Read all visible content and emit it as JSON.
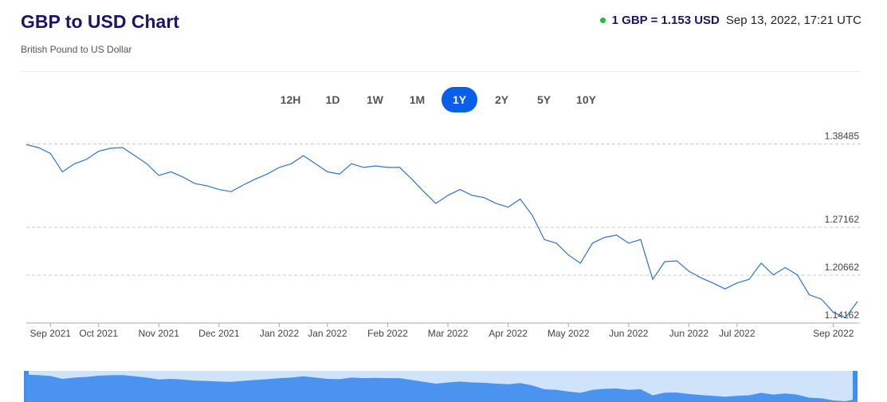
{
  "header": {
    "title": "GBP to USD Chart",
    "subtitle": "British Pound to US Dollar",
    "rate": "1 GBP = 1.153 USD",
    "timestamp": "Sep 13, 2022, 17:21 UTC"
  },
  "ranges": [
    "12H",
    "1D",
    "1W",
    "1M",
    "1Y",
    "2Y",
    "5Y",
    "10Y"
  ],
  "chart_data": {
    "type": "line",
    "color": "#2f74d0",
    "grid": true,
    "categories": [
      null,
      null,
      "Sep 2021",
      null,
      null,
      null,
      "Oct 2021",
      null,
      null,
      null,
      null,
      "Nov 2021",
      null,
      null,
      null,
      null,
      "Dec 2021",
      null,
      null,
      null,
      null,
      "Jan 2022",
      null,
      null,
      null,
      "Jan 2022",
      null,
      null,
      null,
      null,
      "Feb 2022",
      null,
      null,
      null,
      null,
      "Mar 2022",
      null,
      null,
      null,
      null,
      "Apr 2022",
      null,
      null,
      null,
      null,
      "May 2022",
      null,
      null,
      null,
      null,
      "Jun 2022",
      null,
      null,
      null,
      null,
      "Jun 2022",
      null,
      null,
      null,
      "Jul 2022",
      null,
      null,
      null,
      null,
      null,
      null,
      null,
      "Sep 2022",
      null,
      null
    ],
    "values": [
      1.384,
      1.38,
      1.372,
      1.347,
      1.358,
      1.364,
      1.375,
      1.379,
      1.38,
      1.369,
      1.358,
      1.342,
      1.347,
      1.34,
      1.331,
      1.328,
      1.323,
      1.32,
      1.329,
      1.337,
      1.344,
      1.353,
      1.358,
      1.369,
      1.358,
      1.347,
      1.344,
      1.358,
      1.353,
      1.355,
      1.353,
      1.353,
      1.337,
      1.32,
      1.304,
      1.315,
      1.323,
      1.315,
      1.312,
      1.304,
      1.299,
      1.31,
      1.288,
      1.255,
      1.25,
      1.234,
      1.223,
      1.25,
      1.258,
      1.261,
      1.25,
      1.255,
      1.201,
      1.225,
      1.226,
      1.212,
      1.203,
      1.196,
      1.188,
      1.196,
      1.201,
      1.223,
      1.207,
      1.217,
      1.207,
      1.18,
      1.174,
      1.156,
      1.149,
      1.171
    ],
    "ylim": [
      1.1416,
      1.3962
    ],
    "yticks": [
      1.38485,
      1.27162,
      1.20662,
      1.14162
    ]
  }
}
